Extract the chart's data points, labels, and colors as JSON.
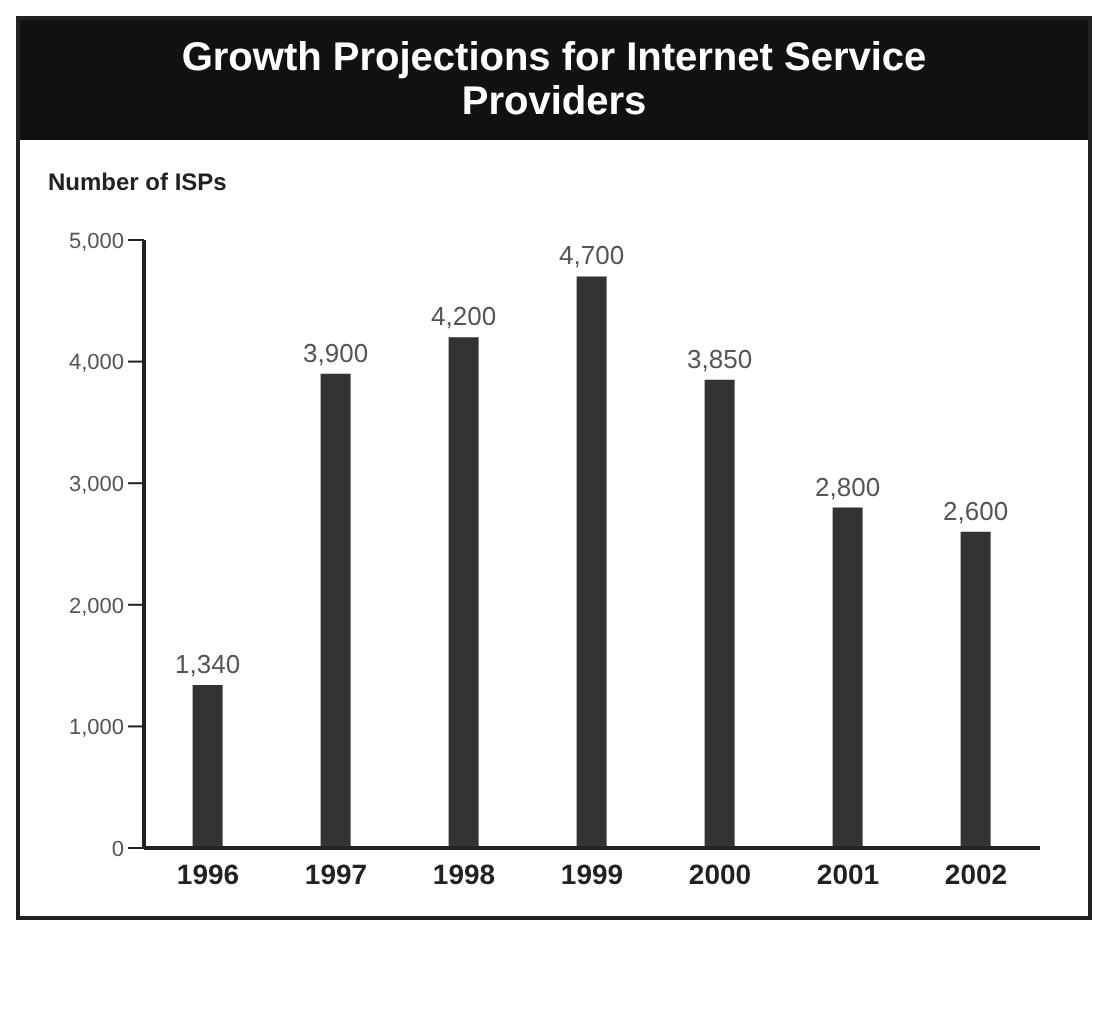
{
  "chart_data": {
    "type": "bar",
    "title": "Growth Projections for Internet Service Providers",
    "ylabel": "Number of ISPs",
    "categories": [
      "1996",
      "1997",
      "1998",
      "1999",
      "2000",
      "2001",
      "2002"
    ],
    "values": [
      1340,
      3900,
      4200,
      4700,
      3850,
      2800,
      2600
    ],
    "value_labels": [
      "1,340",
      "3,900",
      "4,200",
      "4,700",
      "3,850",
      "2,800",
      "2,600"
    ],
    "color": "#333333",
    "ylim": [
      0,
      5000
    ],
    "yticks": [
      0,
      {
        "value": 1000,
        "label": "1,000"
      },
      {
        "value": 2000,
        "label": "2,000"
      },
      {
        "value": 3000,
        "label": "3,000"
      },
      {
        "value": 4000,
        "label": "4,000"
      },
      {
        "value": 5000,
        "label": "5,000"
      }
    ],
    "grid": false,
    "legend": false
  }
}
